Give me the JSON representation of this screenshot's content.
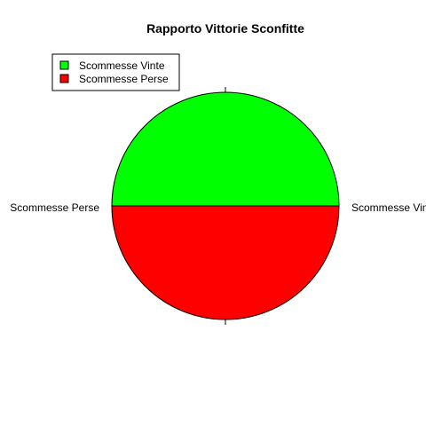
{
  "chart_data": {
    "type": "pie",
    "title": "Rapporto Vittorie Sconfitte",
    "slices": [
      {
        "label": "Scommesse Vinte",
        "value": 50,
        "color": "#00FF00"
      },
      {
        "label": "Scommesse Perse",
        "value": 50,
        "color": "#FF0000"
      }
    ],
    "legend": {
      "position": "top-left",
      "entries": [
        {
          "label": "Scommesse Vinte",
          "color": "#00FF00"
        },
        {
          "label": "Scommesse Perse",
          "color": "#FF0000"
        }
      ]
    }
  }
}
